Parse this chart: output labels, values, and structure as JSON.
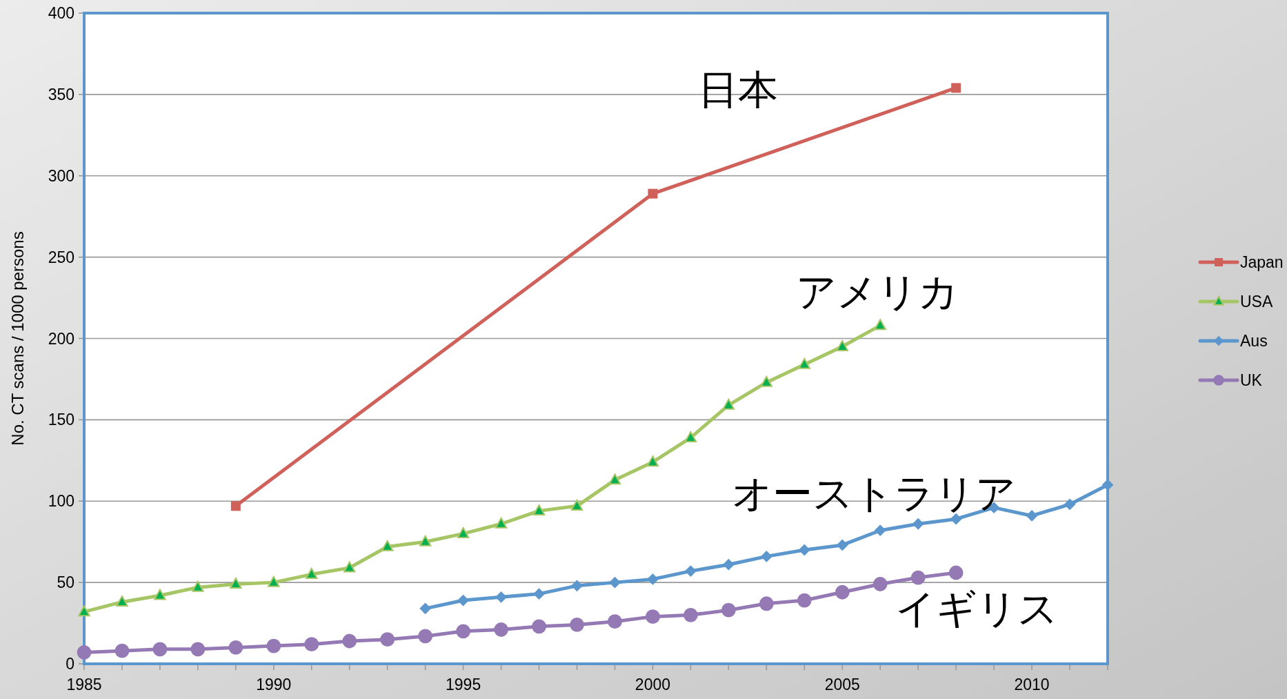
{
  "chart_data": {
    "type": "line",
    "ylabel": "No. CT scans  / 1000 persons",
    "xlim": [
      1985,
      2012
    ],
    "ylim": [
      0,
      400
    ],
    "xticks": [
      1985,
      {
        "value": 1986,
        "label": null
      },
      {
        "value": 1987,
        "label": null
      },
      {
        "value": 1988,
        "label": null
      },
      {
        "value": 1989,
        "label": null
      },
      1990,
      {
        "value": 1991,
        "label": null
      },
      {
        "value": 1992,
        "label": null
      },
      {
        "value": 1993,
        "label": null
      },
      {
        "value": 1994,
        "label": null
      },
      1995,
      {
        "value": 1996,
        "label": null
      },
      {
        "value": 1997,
        "label": null
      },
      {
        "value": 1998,
        "label": null
      },
      {
        "value": 1999,
        "label": null
      },
      2000,
      {
        "value": 2001,
        "label": null
      },
      {
        "value": 2002,
        "label": null
      },
      {
        "value": 2003,
        "label": null
      },
      {
        "value": 2004,
        "label": null
      },
      2005,
      {
        "value": 2006,
        "label": null
      },
      {
        "value": 2007,
        "label": null
      },
      {
        "value": 2008,
        "label": null
      },
      {
        "value": 2009,
        "label": null
      },
      2010,
      {
        "value": 2011,
        "label": null
      },
      {
        "value": 2012,
        "label": null
      }
    ],
    "yticks": [
      0,
      50,
      100,
      150,
      200,
      250,
      300,
      350,
      400
    ],
    "grid": "y",
    "legend": "right",
    "series": [
      {
        "name": "Japan",
        "color": "#d0605a",
        "marker": "square",
        "x": [
          1989,
          2000,
          2008
        ],
        "values": [
          97,
          289,
          354
        ]
      },
      {
        "name": "USA",
        "color": "#a6c565",
        "marker": "triangle",
        "x": [
          1985,
          1986,
          1987,
          1988,
          1989,
          1990,
          1991,
          1992,
          1993,
          1994,
          1995,
          1996,
          1997,
          1998,
          1999,
          2000,
          2001,
          2002,
          2003,
          2004,
          2005,
          2006
        ],
        "values": [
          32,
          38,
          42,
          47,
          49,
          50,
          55,
          59,
          72,
          75,
          80,
          86,
          94,
          97,
          113,
          124,
          139,
          159,
          173,
          184,
          195,
          208
        ]
      },
      {
        "name": "Aus",
        "color": "#5b96cc",
        "marker": "diamond",
        "x": [
          1994,
          1995,
          1996,
          1997,
          1998,
          1999,
          2000,
          2001,
          2002,
          2003,
          2004,
          2005,
          2006,
          2007,
          2008,
          2009,
          2010,
          2011,
          2012
        ],
        "values": [
          34,
          39,
          41,
          43,
          48,
          50,
          52,
          57,
          61,
          66,
          70,
          73,
          82,
          86,
          89,
          96,
          91,
          98,
          110
        ]
      },
      {
        "name": "UK",
        "color": "#9479b4",
        "marker": "circle",
        "x": [
          1985,
          1986,
          1987,
          1988,
          1989,
          1990,
          1991,
          1992,
          1993,
          1994,
          1995,
          1996,
          1997,
          1998,
          1999,
          2000,
          2001,
          2002,
          2003,
          2004,
          2005,
          2006,
          2007,
          2008
        ],
        "values": [
          7,
          8,
          9,
          9,
          10,
          11,
          12,
          14,
          15,
          17,
          20,
          21,
          23,
          24,
          26,
          29,
          30,
          33,
          37,
          39,
          44,
          49,
          53,
          56
        ]
      }
    ],
    "annotations": [
      "日本",
      "アメリカ",
      "オーストラリア",
      "イギリス"
    ]
  }
}
